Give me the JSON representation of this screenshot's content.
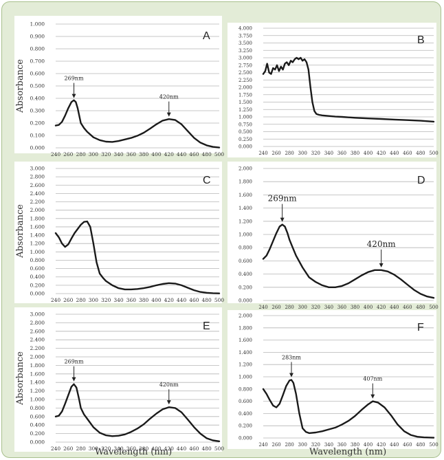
{
  "y_axis_label": "Absorbance",
  "x_axis_label": "Wavelength (nm)",
  "chart_data": [
    {
      "type": "line",
      "panel": "A",
      "ylim": [
        0,
        1
      ],
      "xlim": [
        240,
        500
      ],
      "grid": true,
      "yticks": [
        "0.000",
        "0.100",
        "0.200",
        "0.300",
        "0.400",
        "0.500",
        "0.600",
        "0.700",
        "0.800",
        "0.900",
        "1.000"
      ],
      "xticks": [
        "240",
        "260",
        "280",
        "300",
        "320",
        "340",
        "360",
        "380",
        "400",
        "420",
        "440",
        "460",
        "480",
        "500"
      ],
      "xlabel": "",
      "ylabel": "Absorbance",
      "peaks": [
        {
          "label": "269nm",
          "x": 269,
          "y": 0.38
        },
        {
          "label": "420nm",
          "x": 420,
          "y": 0.23
        }
      ],
      "x": [
        240,
        245,
        250,
        255,
        260,
        265,
        269,
        272,
        275,
        280,
        285,
        290,
        300,
        310,
        320,
        330,
        340,
        350,
        360,
        370,
        380,
        390,
        400,
        410,
        420,
        430,
        440,
        450,
        460,
        470,
        480,
        490,
        500
      ],
      "y": [
        0.18,
        0.185,
        0.21,
        0.26,
        0.32,
        0.37,
        0.385,
        0.37,
        0.32,
        0.2,
        0.16,
        0.13,
        0.085,
        0.062,
        0.05,
        0.048,
        0.055,
        0.068,
        0.08,
        0.098,
        0.122,
        0.155,
        0.19,
        0.22,
        0.232,
        0.225,
        0.19,
        0.135,
        0.08,
        0.042,
        0.02,
        0.008,
        0.002
      ]
    },
    {
      "type": "line",
      "panel": "B",
      "ylim": [
        0,
        4
      ],
      "xlim": [
        240,
        500
      ],
      "grid": true,
      "yticks": [
        "0.000",
        "0.250",
        "0.500",
        "0.750",
        "1.000",
        "1.250",
        "1.500",
        "1.750",
        "2.000",
        "2.250",
        "2.500",
        "2.750",
        "3.000",
        "3.250",
        "3.500",
        "3.750",
        "4.000"
      ],
      "xticks": [
        "240",
        "260",
        "280",
        "300",
        "320",
        "340",
        "360",
        "380",
        "400",
        "420",
        "440",
        "460",
        "480",
        "500"
      ],
      "xlabel": "",
      "ylabel": "",
      "peaks": [],
      "x": [
        240,
        243,
        246,
        249,
        252,
        255,
        258,
        261,
        264,
        267,
        270,
        273,
        276,
        279,
        282,
        285,
        288,
        291,
        294,
        297,
        300,
        303,
        306,
        309,
        312,
        315,
        318,
        321,
        325,
        330,
        340,
        350,
        360,
        380,
        400,
        420,
        440,
        460,
        480,
        500
      ],
      "y": [
        2.45,
        2.55,
        2.8,
        2.5,
        2.45,
        2.65,
        2.6,
        2.75,
        2.55,
        2.7,
        2.6,
        2.8,
        2.85,
        2.75,
        2.9,
        2.85,
        2.95,
        3.0,
        2.95,
        3.0,
        2.9,
        2.95,
        2.85,
        2.6,
        2.0,
        1.5,
        1.2,
        1.1,
        1.07,
        1.05,
        1.03,
        1.01,
        1.0,
        0.97,
        0.95,
        0.93,
        0.91,
        0.89,
        0.87,
        0.84
      ]
    },
    {
      "type": "line",
      "panel": "C",
      "ylim": [
        0,
        3
      ],
      "xlim": [
        240,
        500
      ],
      "grid": true,
      "yticks": [
        "0.000",
        "0.200",
        "0.400",
        "0.600",
        "0.800",
        "1.000",
        "1.200",
        "1.400",
        "1.600",
        "1.800",
        "2.000",
        "2.200",
        "2.400",
        "2.600",
        "2.800",
        "3.000"
      ],
      "xticks": [
        "240",
        "260",
        "280",
        "300",
        "320",
        "340",
        "360",
        "380",
        "400",
        "420",
        "440",
        "460",
        "480",
        "500"
      ],
      "xlabel": "",
      "ylabel": "Absorbance",
      "peaks": [],
      "x": [
        240,
        245,
        250,
        255,
        260,
        265,
        270,
        275,
        280,
        285,
        290,
        295,
        300,
        305,
        310,
        315,
        320,
        330,
        340,
        350,
        360,
        370,
        380,
        390,
        400,
        410,
        420,
        430,
        440,
        450,
        460,
        470,
        480,
        490,
        500
      ],
      "y": [
        1.45,
        1.35,
        1.2,
        1.12,
        1.18,
        1.32,
        1.45,
        1.55,
        1.65,
        1.72,
        1.73,
        1.6,
        1.2,
        0.75,
        0.48,
        0.38,
        0.3,
        0.2,
        0.13,
        0.1,
        0.1,
        0.11,
        0.13,
        0.16,
        0.2,
        0.23,
        0.25,
        0.24,
        0.2,
        0.14,
        0.08,
        0.04,
        0.02,
        0.01,
        0.005
      ]
    },
    {
      "type": "line",
      "panel": "D",
      "ylim": [
        0,
        2
      ],
      "xlim": [
        240,
        500
      ],
      "grid": true,
      "yticks": [
        "0.000",
        "0.200",
        "0.400",
        "0.600",
        "0.800",
        "1.000",
        "1.200",
        "1.400",
        "1.600",
        "1.800",
        "2.000"
      ],
      "xticks": [
        "240",
        "260",
        "280",
        "300",
        "320",
        "340",
        "360",
        "380",
        "400",
        "420",
        "440",
        "460",
        "480",
        "500"
      ],
      "xlabel": "",
      "ylabel": "",
      "peaks": [
        {
          "label": "269nm",
          "x": 269,
          "y": 1.15
        },
        {
          "label": "420nm",
          "x": 420,
          "y": 0.46
        }
      ],
      "x": [
        240,
        245,
        250,
        255,
        260,
        265,
        269,
        273,
        277,
        280,
        285,
        290,
        300,
        310,
        320,
        330,
        340,
        350,
        360,
        370,
        380,
        390,
        400,
        410,
        420,
        430,
        440,
        450,
        460,
        470,
        480,
        490,
        500
      ],
      "y": [
        0.63,
        0.68,
        0.78,
        0.9,
        1.02,
        1.12,
        1.15,
        1.12,
        1.02,
        0.92,
        0.8,
        0.68,
        0.5,
        0.35,
        0.28,
        0.23,
        0.2,
        0.2,
        0.22,
        0.26,
        0.32,
        0.38,
        0.43,
        0.46,
        0.46,
        0.44,
        0.39,
        0.32,
        0.24,
        0.16,
        0.1,
        0.06,
        0.04
      ]
    },
    {
      "type": "line",
      "panel": "E",
      "ylim": [
        0,
        3
      ],
      "xlim": [
        240,
        500
      ],
      "grid": true,
      "yticks": [
        "0.000",
        "0.200",
        "0.400",
        "0.600",
        "0.800",
        "1.000",
        "1.200",
        "1.400",
        "1.600",
        "1.800",
        "2.000",
        "2.200",
        "2.400",
        "2.600",
        "2.800",
        "3.000"
      ],
      "xticks": [
        "240",
        "260",
        "280",
        "300",
        "320",
        "340",
        "360",
        "380",
        "400",
        "420",
        "440",
        "460",
        "480",
        "500"
      ],
      "xlabel": "Wavelength (nm)",
      "ylabel": "Absorbance",
      "peaks": [
        {
          "label": "269nm",
          "x": 269,
          "y": 1.36
        },
        {
          "label": "420nm",
          "x": 420,
          "y": 0.82
        }
      ],
      "x": [
        240,
        245,
        250,
        255,
        260,
        265,
        269,
        273,
        277,
        280,
        285,
        290,
        300,
        310,
        320,
        330,
        340,
        350,
        360,
        370,
        380,
        390,
        400,
        410,
        420,
        430,
        440,
        450,
        460,
        470,
        480,
        490,
        500
      ],
      "y": [
        0.6,
        0.62,
        0.72,
        0.9,
        1.1,
        1.3,
        1.36,
        1.28,
        1.02,
        0.8,
        0.65,
        0.55,
        0.35,
        0.22,
        0.16,
        0.14,
        0.15,
        0.18,
        0.24,
        0.32,
        0.42,
        0.55,
        0.67,
        0.77,
        0.82,
        0.8,
        0.7,
        0.53,
        0.35,
        0.2,
        0.09,
        0.04,
        0.02
      ]
    },
    {
      "type": "line",
      "panel": "F",
      "ylim": [
        0,
        2
      ],
      "xlim": [
        240,
        500
      ],
      "grid": true,
      "yticks": [
        "0.000",
        "0.200",
        "0.400",
        "0.600",
        "0.800",
        "1.000",
        "1.200",
        "1.400",
        "1.600",
        "1.800",
        "2.000"
      ],
      "xticks": [
        "240",
        "260",
        "280",
        "300",
        "320",
        "340",
        "360",
        "380",
        "400",
        "420",
        "440",
        "460",
        "480",
        "500"
      ],
      "xlabel": "Wavelength (nm)",
      "ylabel": "",
      "peaks": [
        {
          "label": "283nm",
          "x": 283,
          "y": 0.95
        },
        {
          "label": "407nm",
          "x": 407,
          "y": 0.6
        }
      ],
      "x": [
        240,
        245,
        250,
        255,
        260,
        265,
        270,
        275,
        280,
        283,
        286,
        290,
        295,
        300,
        305,
        310,
        320,
        330,
        340,
        350,
        360,
        370,
        380,
        390,
        400,
        407,
        415,
        425,
        435,
        445,
        455,
        465,
        475,
        485,
        500
      ],
      "y": [
        0.8,
        0.72,
        0.62,
        0.53,
        0.5,
        0.56,
        0.7,
        0.85,
        0.94,
        0.95,
        0.9,
        0.72,
        0.4,
        0.16,
        0.1,
        0.08,
        0.09,
        0.11,
        0.14,
        0.17,
        0.22,
        0.28,
        0.36,
        0.46,
        0.55,
        0.6,
        0.58,
        0.5,
        0.37,
        0.22,
        0.11,
        0.05,
        0.02,
        0.01,
        0.005
      ]
    }
  ]
}
